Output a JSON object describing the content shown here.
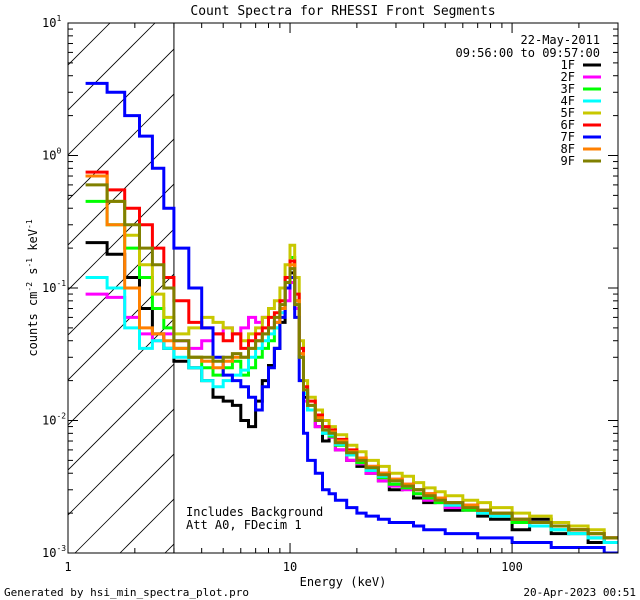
{
  "chart_data": {
    "type": "line",
    "title": "Count Spectra for RHESSI Front Segments",
    "xlabel": "Energy (keV)",
    "ylabel_parts": [
      "counts cm",
      "-2",
      " s",
      "-1",
      " keV",
      "-1"
    ],
    "x_scale": "log",
    "y_scale": "log",
    "xlim": [
      1,
      300
    ],
    "ylim": [
      0.001,
      10
    ],
    "x_ticks": [
      {
        "value": 1,
        "label": "1"
      },
      {
        "value": 10,
        "label": "10"
      },
      {
        "value": 100,
        "label": "100"
      }
    ],
    "y_ticks": [
      {
        "value": 0.001,
        "mant": "10",
        "exp": "-3"
      },
      {
        "value": 0.01,
        "mant": "10",
        "exp": "-2"
      },
      {
        "value": 0.1,
        "mant": "10",
        "exp": "-1"
      },
      {
        "value": 1,
        "mant": "10",
        "exp": "0"
      },
      {
        "value": 10,
        "mant": "10",
        "exp": "1"
      }
    ],
    "excluded_region": {
      "x_from": 1,
      "x_to": 3,
      "pattern": "diagonal-hatch"
    },
    "date": "22-May-2011",
    "time_range": "09:56:00 to 09:57:00",
    "annotations": [
      "Includes Background",
      "Att A0, FDecim 1"
    ],
    "energy_edges": [
      1.2,
      1.5,
      1.8,
      2.1,
      2.4,
      2.7,
      3.0,
      3.5,
      4.0,
      4.5,
      5.0,
      5.5,
      6.0,
      6.5,
      7.0,
      7.5,
      8.0,
      8.5,
      9.0,
      9.5,
      10.0,
      10.5,
      11.0,
      11.5,
      12.0,
      13.0,
      14.0,
      15.0,
      16.0,
      18.0,
      20.0,
      22.0,
      25.0,
      28.0,
      32.0,
      36.0,
      40.0,
      45.0,
      50.0,
      60.0,
      70.0,
      80.0,
      100.0,
      120.0,
      150.0,
      180.0,
      220.0,
      260.0,
      300.0
    ],
    "series": [
      {
        "name": "1F",
        "color": "#000000",
        "values": [
          0.22,
          0.18,
          0.12,
          0.07,
          0.045,
          0.035,
          0.028,
          0.025,
          0.02,
          0.015,
          0.014,
          0.013,
          0.01,
          0.009,
          0.014,
          0.02,
          0.026,
          0.035,
          0.055,
          0.1,
          0.13,
          0.07,
          0.03,
          0.015,
          0.012,
          0.009,
          0.007,
          0.0075,
          0.006,
          0.005,
          0.0045,
          0.004,
          0.0035,
          0.003,
          0.0032,
          0.0026,
          0.0024,
          0.0025,
          0.0021,
          0.0022,
          0.0019,
          0.0018,
          0.0015,
          0.0018,
          0.0014,
          0.0015,
          0.0012,
          0.0013
        ]
      },
      {
        "name": "2F",
        "color": "#ff00ff",
        "values": [
          0.09,
          0.085,
          0.06,
          0.045,
          0.04,
          0.045,
          0.04,
          0.035,
          0.04,
          0.045,
          0.05,
          0.045,
          0.05,
          0.06,
          0.055,
          0.06,
          0.05,
          0.055,
          0.065,
          0.08,
          0.11,
          0.07,
          0.03,
          0.014,
          0.012,
          0.009,
          0.008,
          0.0075,
          0.006,
          0.005,
          0.0047,
          0.004,
          0.0035,
          0.0032,
          0.003,
          0.0028,
          0.0025,
          0.0024,
          0.0022,
          0.0021,
          0.002,
          0.0019,
          0.0018,
          0.0017,
          0.0016,
          0.0014,
          0.0013,
          0.0012
        ]
      },
      {
        "name": "3F",
        "color": "#00ff00",
        "values": [
          0.45,
          0.3,
          0.2,
          0.12,
          0.07,
          0.05,
          0.035,
          0.03,
          0.025,
          0.022,
          0.025,
          0.028,
          0.022,
          0.025,
          0.03,
          0.035,
          0.04,
          0.05,
          0.07,
          0.12,
          0.17,
          0.08,
          0.03,
          0.016,
          0.012,
          0.01,
          0.008,
          0.0076,
          0.0065,
          0.0055,
          0.0048,
          0.0042,
          0.0037,
          0.0033,
          0.0031,
          0.0028,
          0.0026,
          0.0024,
          0.0023,
          0.0021,
          0.002,
          0.0019,
          0.0017,
          0.0016,
          0.0015,
          0.0014,
          0.0013,
          0.0012
        ]
      },
      {
        "name": "4F",
        "color": "#00ffff",
        "values": [
          0.12,
          0.1,
          0.05,
          0.035,
          0.04,
          0.035,
          0.03,
          0.025,
          0.02,
          0.018,
          0.02,
          0.022,
          0.024,
          0.03,
          0.035,
          0.04,
          0.045,
          0.05,
          0.065,
          0.1,
          0.14,
          0.075,
          0.03,
          0.016,
          0.012,
          0.01,
          0.008,
          0.0078,
          0.0066,
          0.0055,
          0.005,
          0.0042,
          0.0038,
          0.0035,
          0.0032,
          0.003,
          0.0027,
          0.0025,
          0.0023,
          0.0022,
          0.002,
          0.0019,
          0.0018,
          0.0016,
          0.0015,
          0.0014,
          0.0013,
          0.0012
        ]
      },
      {
        "name": "5F",
        "color": "#c8c800",
        "values": [
          0.7,
          0.45,
          0.25,
          0.15,
          0.09,
          0.06,
          0.045,
          0.05,
          0.06,
          0.055,
          0.05,
          0.045,
          0.04,
          0.045,
          0.05,
          0.06,
          0.07,
          0.08,
          0.1,
          0.15,
          0.21,
          0.12,
          0.04,
          0.02,
          0.015,
          0.012,
          0.01,
          0.009,
          0.0078,
          0.0065,
          0.0058,
          0.005,
          0.0045,
          0.004,
          0.0038,
          0.0034,
          0.0031,
          0.0029,
          0.0027,
          0.0025,
          0.0024,
          0.0022,
          0.002,
          0.0019,
          0.0017,
          0.0016,
          0.0015,
          0.0013
        ]
      },
      {
        "name": "6F",
        "color": "#ff0000",
        "values": [
          0.75,
          0.55,
          0.4,
          0.3,
          0.2,
          0.12,
          0.08,
          0.055,
          0.05,
          0.045,
          0.04,
          0.045,
          0.035,
          0.04,
          0.045,
          0.05,
          0.06,
          0.065,
          0.08,
          0.12,
          0.16,
          0.09,
          0.035,
          0.018,
          0.014,
          0.011,
          0.009,
          0.0085,
          0.0072,
          0.006,
          0.0052,
          0.0045,
          0.004,
          0.0036,
          0.0033,
          0.003,
          0.0028,
          0.0026,
          0.0024,
          0.0023,
          0.0021,
          0.002,
          0.0018,
          0.0017,
          0.0016,
          0.0015,
          0.0014,
          0.0013
        ]
      },
      {
        "name": "7F",
        "color": "#0000ff",
        "values": [
          3.5,
          3.0,
          2.0,
          1.4,
          0.8,
          0.4,
          0.2,
          0.1,
          0.05,
          0.03,
          0.022,
          0.02,
          0.018,
          0.015,
          0.012,
          0.018,
          0.025,
          0.035,
          0.06,
          0.1,
          0.12,
          0.06,
          0.02,
          0.008,
          0.005,
          0.004,
          0.003,
          0.0028,
          0.0025,
          0.0022,
          0.002,
          0.0019,
          0.0018,
          0.0017,
          0.0017,
          0.0016,
          0.0015,
          0.0015,
          0.0014,
          0.0014,
          0.0013,
          0.0013,
          0.0012,
          0.0012,
          0.0011,
          0.0011,
          0.0011,
          0.001
        ]
      },
      {
        "name": "8F",
        "color": "#ff8000",
        "values": [
          0.7,
          0.3,
          0.1,
          0.05,
          0.045,
          0.04,
          0.035,
          0.03,
          0.028,
          0.025,
          0.028,
          0.03,
          0.03,
          0.035,
          0.04,
          0.045,
          0.05,
          0.055,
          0.07,
          0.11,
          0.15,
          0.08,
          0.032,
          0.017,
          0.013,
          0.0105,
          0.0085,
          0.0082,
          0.007,
          0.0058,
          0.0052,
          0.0045,
          0.004,
          0.0036,
          0.0033,
          0.003,
          0.0028,
          0.0026,
          0.0024,
          0.0023,
          0.0021,
          0.002,
          0.0018,
          0.0017,
          0.0016,
          0.0015,
          0.0014,
          0.0013
        ]
      },
      {
        "name": "9F",
        "color": "#808000",
        "values": [
          0.6,
          0.45,
          0.3,
          0.2,
          0.15,
          0.1,
          0.04,
          0.03,
          0.03,
          0.028,
          0.03,
          0.032,
          0.03,
          0.035,
          0.04,
          0.045,
          0.05,
          0.06,
          0.075,
          0.11,
          0.14,
          0.075,
          0.03,
          0.017,
          0.013,
          0.01,
          0.0085,
          0.008,
          0.0068,
          0.0057,
          0.005,
          0.0044,
          0.0039,
          0.0035,
          0.0032,
          0.003,
          0.0027,
          0.0025,
          0.0024,
          0.0022,
          0.0021,
          0.002,
          0.0018,
          0.0017,
          0.0016,
          0.0015,
          0.0014,
          0.0013
        ]
      }
    ]
  },
  "footer": {
    "generated_by": "Generated by hsi_min_spectra_plot.pro",
    "timestamp": "20-Apr-2023 00:51"
  }
}
